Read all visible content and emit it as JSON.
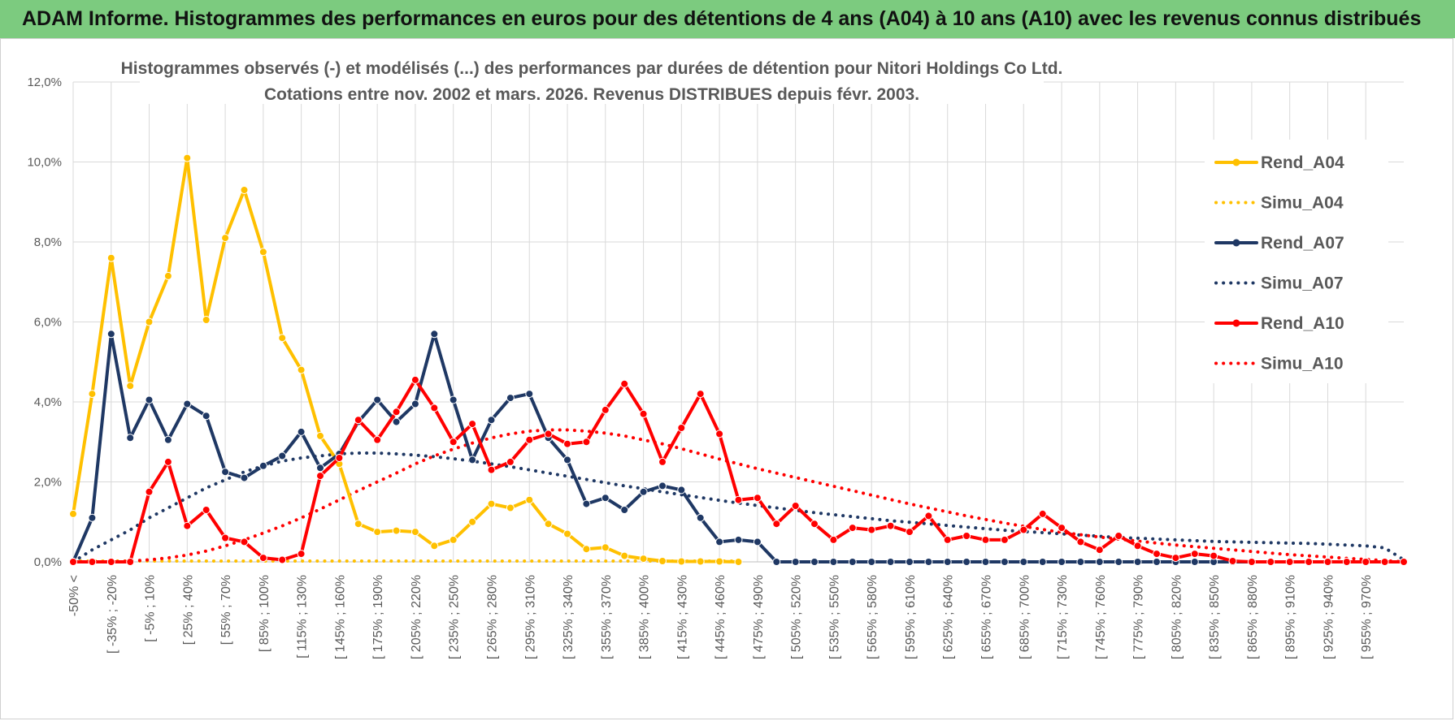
{
  "header": {
    "title": "ADAM Informe. Histogrammes des performances en euros pour des détentions de 4 ans (A04) à 10 ans (A10) avec les revenus connus distribués"
  },
  "chart_data": {
    "type": "line",
    "title": "Histogrammes observés (-) et modélisés (...) des performances par durées de détention pour Nitori Holdings Co Ltd.",
    "subtitle": "Cotations entre nov. 2002 et mars. 2026.  Revenus DISTRIBUES depuis févr. 2003.",
    "xlabel": "",
    "ylabel": "",
    "ylim": [
      0,
      12
    ],
    "y_ticks": [
      "0,0%",
      "2,0%",
      "4,0%",
      "6,0%",
      "8,0%",
      "10,0%",
      "12,0%"
    ],
    "grid": true,
    "legend_position": "right",
    "x_labels_shown": [
      "-50% <",
      "[ -35% ; -20%",
      "[ -5% ; 10%",
      "[ 25% ; 40%",
      "[ 55% ; 70%",
      "[ 85% ; 100%",
      "[ 115% ; 130%",
      "[ 145% ; 160%",
      "[ 175% ; 190%",
      "[ 205% ; 220%",
      "[ 235% ; 250%",
      "[ 265% ; 280%",
      "[ 295% ; 310%",
      "[ 325% ; 340%",
      "[ 355% ; 370%",
      "[ 385% ; 400%",
      "[ 415% ; 430%",
      "[ 445% ; 460%",
      "[ 475% ; 490%",
      "[ 505% ; 520%",
      "[ 535% ; 550%",
      "[ 565% ; 580%",
      "[ 595% ; 610%",
      "[ 625% ; 640%",
      "[ 655% ; 670%",
      "[ 685% ; 700%",
      "[ 715% ; 730%",
      "[ 745% ; 760%",
      "[ 775% ; 790%",
      "[ 805% ; 820%",
      "[ 835% ; 850%",
      "[ 865% ; 880%",
      "[ 895% ; 910%",
      "[ 925% ; 940%",
      "[ 955% ; 970%"
    ],
    "n_points": 71,
    "series": [
      {
        "name": "Rend_A04",
        "color": "#ffc000",
        "style": "solid",
        "markers": true,
        "values": [
          1.2,
          4.2,
          7.6,
          4.4,
          6.0,
          7.15,
          10.1,
          6.05,
          8.1,
          9.3,
          7.75,
          5.6,
          4.8,
          3.15,
          2.45,
          0.95,
          0.75,
          0.78,
          0.75,
          0.4,
          0.55,
          1.0,
          1.45,
          1.35,
          1.55,
          0.95,
          0.7,
          0.32,
          0.36,
          0.15,
          0.08,
          0.02,
          0.01,
          0.01,
          0.01,
          0.0
        ]
      },
      {
        "name": "Simu_A04",
        "color": "#ffc000",
        "style": "dotted",
        "markers": false,
        "values": [
          0.02,
          0.02,
          0.02,
          0.02,
          0.02,
          0.02,
          0.02,
          0.02,
          0.02,
          0.02,
          0.02,
          0.02,
          0.02,
          0.02,
          0.02,
          0.02,
          0.02,
          0.02,
          0.02,
          0.02,
          0.02,
          0.02,
          0.02,
          0.02,
          0.02,
          0.02,
          0.02,
          0.02,
          0.02,
          0.02,
          0.02,
          0.02,
          0.02,
          0.02,
          0.02,
          0.02
        ]
      },
      {
        "name": "Rend_A07",
        "color": "#1f3864",
        "style": "solid",
        "markers": true,
        "values": [
          0.0,
          1.1,
          5.7,
          3.1,
          4.05,
          3.05,
          3.95,
          3.65,
          2.25,
          2.1,
          2.4,
          2.65,
          3.25,
          2.35,
          2.7,
          3.5,
          4.05,
          3.5,
          3.95,
          5.7,
          4.05,
          2.55,
          3.55,
          4.1,
          4.2,
          3.1,
          2.55,
          1.45,
          1.6,
          1.3,
          1.75,
          1.9,
          1.8,
          1.1,
          0.5,
          0.55,
          0.5,
          0.0,
          0.0,
          0.0,
          0.0,
          0.0,
          0.0,
          0.0,
          0.0,
          0.0,
          0.0,
          0.0,
          0.0,
          0.0,
          0.0,
          0.0,
          0.0,
          0.0,
          0.0,
          0.0,
          0.0,
          0.0,
          0.0,
          0.0,
          0.0,
          0.0,
          0.0,
          0.0,
          0.0,
          0.0,
          0.0,
          0.0,
          0.0,
          0.0,
          0.0
        ]
      },
      {
        "name": "Simu_A07",
        "color": "#1f3864",
        "style": "dotted",
        "markers": false,
        "values": [
          0.0,
          0.3,
          0.55,
          0.8,
          1.1,
          1.35,
          1.6,
          1.85,
          2.05,
          2.25,
          2.4,
          2.52,
          2.6,
          2.65,
          2.7,
          2.72,
          2.72,
          2.7,
          2.67,
          2.63,
          2.58,
          2.52,
          2.45,
          2.38,
          2.3,
          2.22,
          2.14,
          2.06,
          1.98,
          1.9,
          1.83,
          1.75,
          1.68,
          1.61,
          1.54,
          1.47,
          1.41,
          1.35,
          1.29,
          1.23,
          1.18,
          1.13,
          1.08,
          1.03,
          0.99,
          0.95,
          0.91,
          0.87,
          0.83,
          0.79,
          0.76,
          0.73,
          0.7,
          0.67,
          0.64,
          0.61,
          0.59,
          0.57,
          0.55,
          0.53,
          0.51,
          0.5,
          0.49,
          0.48,
          0.47,
          0.46,
          0.44,
          0.42,
          0.4,
          0.35,
          0.05
        ]
      },
      {
        "name": "Rend_A10",
        "color": "#ff0000",
        "style": "solid",
        "markers": true,
        "values": [
          0.0,
          0.0,
          0.0,
          0.0,
          1.75,
          2.5,
          0.9,
          1.3,
          0.6,
          0.5,
          0.1,
          0.05,
          0.2,
          2.15,
          2.6,
          3.55,
          3.05,
          3.75,
          4.55,
          3.85,
          3.0,
          3.45,
          2.3,
          2.5,
          3.05,
          3.2,
          2.95,
          3.0,
          3.8,
          4.45,
          3.7,
          2.5,
          3.35,
          4.2,
          3.2,
          1.55,
          1.6,
          0.95,
          1.4,
          0.95,
          0.55,
          0.85,
          0.8,
          0.9,
          0.75,
          1.15,
          0.55,
          0.65,
          0.55,
          0.55,
          0.8,
          1.2,
          0.85,
          0.5,
          0.3,
          0.65,
          0.4,
          0.2,
          0.1,
          0.2,
          0.15,
          0.02,
          0.0,
          0.0,
          0.0,
          0.0,
          0.0,
          0.0,
          0.0,
          0.0,
          0.0
        ]
      },
      {
        "name": "Simu_A10",
        "color": "#ff0000",
        "style": "dotted",
        "markers": false,
        "values": [
          0.0,
          0.0,
          0.0,
          0.02,
          0.05,
          0.1,
          0.17,
          0.27,
          0.4,
          0.55,
          0.72,
          0.9,
          1.1,
          1.32,
          1.55,
          1.78,
          2.0,
          2.22,
          2.45,
          2.65,
          2.82,
          2.97,
          3.1,
          3.2,
          3.27,
          3.3,
          3.3,
          3.27,
          3.22,
          3.15,
          3.05,
          2.95,
          2.83,
          2.7,
          2.57,
          2.45,
          2.33,
          2.22,
          2.11,
          2.0,
          1.89,
          1.78,
          1.67,
          1.56,
          1.45,
          1.35,
          1.25,
          1.15,
          1.06,
          0.97,
          0.89,
          0.81,
          0.74,
          0.68,
          0.62,
          0.57,
          0.52,
          0.47,
          0.42,
          0.38,
          0.34,
          0.3,
          0.26,
          0.22,
          0.18,
          0.15,
          0.12,
          0.09,
          0.06,
          0.03,
          0.0
        ]
      }
    ]
  }
}
